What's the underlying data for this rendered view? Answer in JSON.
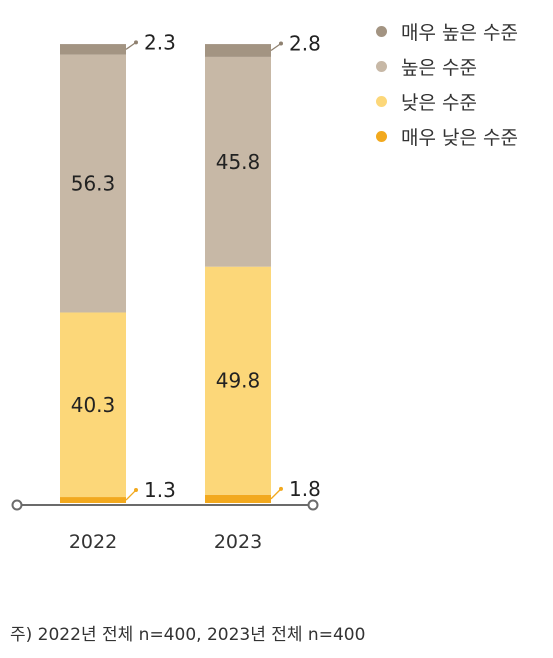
{
  "chart_data": {
    "type": "bar",
    "stacked": true,
    "percent_stacked": true,
    "categories": [
      "2022",
      "2023"
    ],
    "series": [
      {
        "name": "매우 낮은 수준",
        "values": [
          1.3,
          1.8
        ],
        "color": "#f2a91e"
      },
      {
        "name": "낮은 수준",
        "values": [
          40.3,
          49.8
        ],
        "color": "#fcd779"
      },
      {
        "name": "높은 수준",
        "values": [
          56.3,
          45.8
        ],
        "color": "#c7b8a6"
      },
      {
        "name": "매우 높은 수준",
        "values": [
          2.3,
          2.8
        ],
        "color": "#a39482"
      }
    ],
    "legend_order": [
      "매우 높은 수준",
      "높은 수준",
      "낮은 수준",
      "매우 낮은 수준"
    ],
    "labels": {
      "2022": {
        "매우 낮은 수준": "1.3",
        "낮은 수준": "40.3",
        "높은 수준": "56.3",
        "매우 높은 수준": "2.3"
      },
      "2023": {
        "매우 낮은 수준": "1.8",
        "낮은 수준": "49.8",
        "높은 수준": "45.8",
        "매우 높은 수준": "2.8"
      }
    },
    "ylim": [
      0,
      100
    ],
    "legend_position": "top-right",
    "grid": false,
    "axis_color": "#6b6b6b"
  },
  "footnote": "주) 2022년 전체 n=400, 2023년 전체 n=400"
}
